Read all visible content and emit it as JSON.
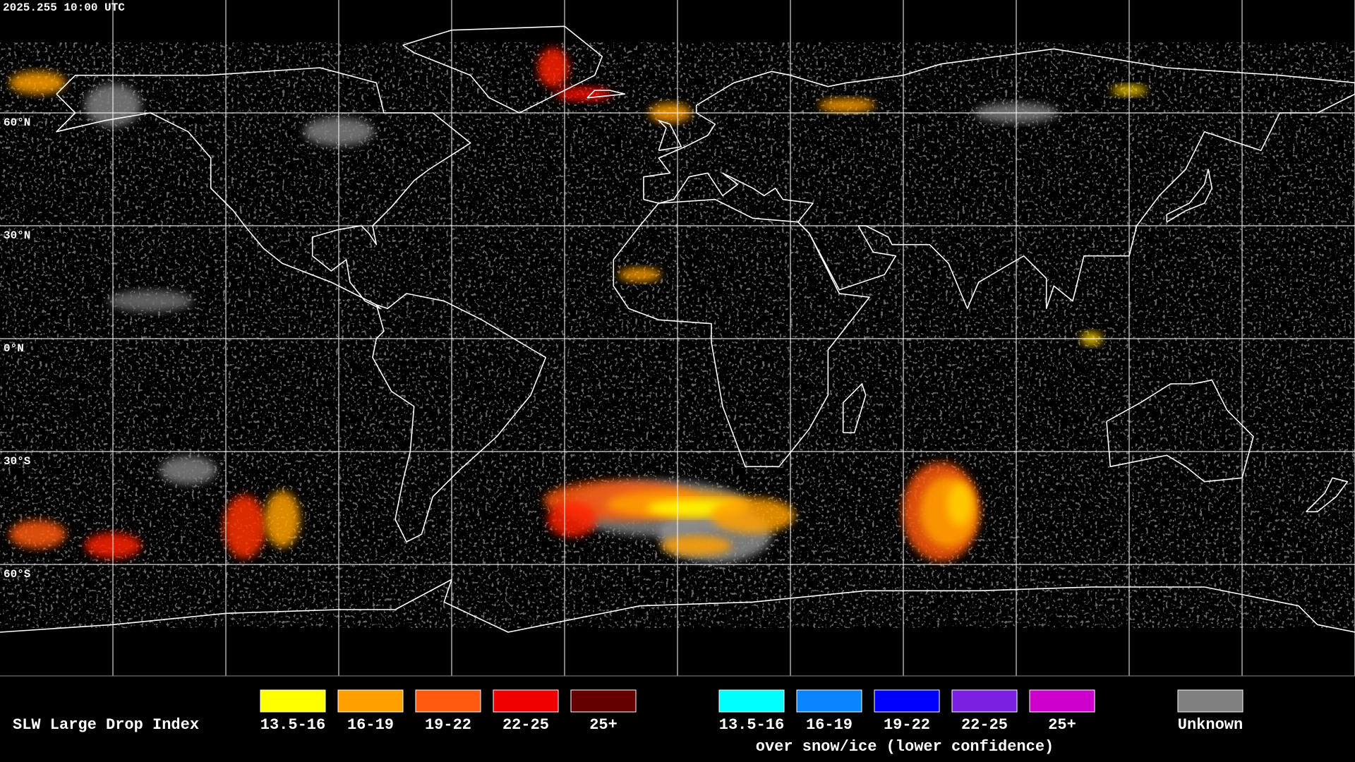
{
  "header": {
    "timestamp": "2025.255 10:00 UTC"
  },
  "map": {
    "latitude_labels": [
      "60°N",
      "30°N",
      "0°N",
      "30°S",
      "60°S"
    ]
  },
  "legend": {
    "title": "SLW Large Drop Index",
    "groups": [
      {
        "items": [
          {
            "label": "13.5-16",
            "color": "#ffff00"
          },
          {
            "label": "16-19",
            "color": "#ffa000"
          },
          {
            "label": "19-22",
            "color": "#ff5a10"
          },
          {
            "label": "22-25",
            "color": "#f00000"
          },
          {
            "label": "25+",
            "color": "#640000"
          }
        ]
      },
      {
        "items": [
          {
            "label": "13.5-16",
            "color": "#00ffff"
          },
          {
            "label": "16-19",
            "color": "#0a84ff"
          },
          {
            "label": "19-22",
            "color": "#0000ff"
          },
          {
            "label": "22-25",
            "color": "#7b1fe0"
          },
          {
            "label": "25+",
            "color": "#cc00cc"
          }
        ],
        "note": "over snow/ice (lower confidence)"
      }
    ],
    "unknown": {
      "label": "Unknown",
      "color": "#808080"
    }
  }
}
